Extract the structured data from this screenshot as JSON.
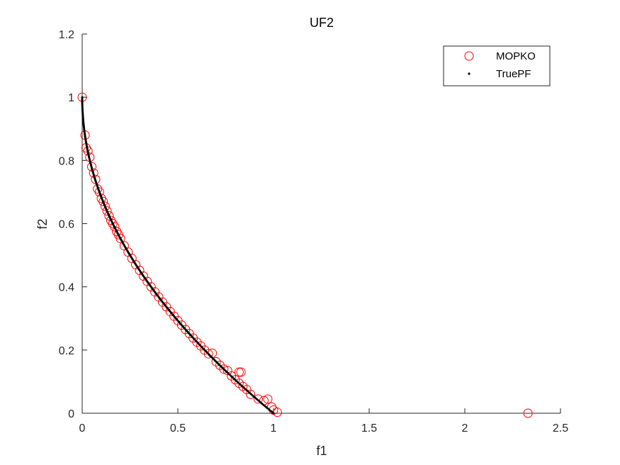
{
  "chart_data": {
    "type": "scatter",
    "title": "UF2",
    "xlabel": "f1",
    "ylabel": "f2",
    "xlim": [
      0,
      2.5
    ],
    "ylim": [
      0,
      1.2
    ],
    "xticks": [
      0,
      0.5,
      1,
      1.5,
      2,
      2.5
    ],
    "xtick_labels": [
      "0",
      "0.5",
      "1",
      "1.5",
      "2",
      "2.5"
    ],
    "yticks": [
      0,
      0.2,
      0.4,
      0.6,
      0.8,
      1,
      1.2
    ],
    "ytick_labels": [
      "0",
      "0.2",
      "0.4",
      "0.6",
      "0.8",
      "1",
      "1.2"
    ],
    "grid": false,
    "legend_position": "top-right",
    "colors": {
      "mopko": "#ff0000",
      "truepf": "#000000",
      "axis": "#262626"
    },
    "series": [
      {
        "name": "MOPKO",
        "marker": "open-circle",
        "points": [
          [
            0.0,
            1.0
          ],
          [
            0.015,
            0.88
          ],
          [
            0.02,
            0.84
          ],
          [
            0.03,
            0.83
          ],
          [
            0.04,
            0.81
          ],
          [
            0.05,
            0.78
          ],
          [
            0.06,
            0.76
          ],
          [
            0.07,
            0.74
          ],
          [
            0.08,
            0.71
          ],
          [
            0.09,
            0.7
          ],
          [
            0.1,
            0.68
          ],
          [
            0.11,
            0.67
          ],
          [
            0.12,
            0.655
          ],
          [
            0.13,
            0.64
          ],
          [
            0.14,
            0.625
          ],
          [
            0.15,
            0.61
          ],
          [
            0.16,
            0.6
          ],
          [
            0.17,
            0.59
          ],
          [
            0.18,
            0.575
          ],
          [
            0.19,
            0.565
          ],
          [
            0.2,
            0.553
          ],
          [
            0.22,
            0.53
          ],
          [
            0.24,
            0.51
          ],
          [
            0.26,
            0.49
          ],
          [
            0.28,
            0.47
          ],
          [
            0.3,
            0.452
          ],
          [
            0.32,
            0.434
          ],
          [
            0.34,
            0.417
          ],
          [
            0.36,
            0.4
          ],
          [
            0.38,
            0.384
          ],
          [
            0.4,
            0.368
          ],
          [
            0.42,
            0.352
          ],
          [
            0.44,
            0.337
          ],
          [
            0.46,
            0.322
          ],
          [
            0.48,
            0.307
          ],
          [
            0.5,
            0.293
          ],
          [
            0.52,
            0.279
          ],
          [
            0.54,
            0.265
          ],
          [
            0.56,
            0.252
          ],
          [
            0.58,
            0.238
          ],
          [
            0.6,
            0.225
          ],
          [
            0.62,
            0.213
          ],
          [
            0.64,
            0.2
          ],
          [
            0.66,
            0.188
          ],
          [
            0.68,
            0.19
          ],
          [
            0.7,
            0.163
          ],
          [
            0.72,
            0.152
          ],
          [
            0.74,
            0.14
          ],
          [
            0.76,
            0.135
          ],
          [
            0.78,
            0.118
          ],
          [
            0.8,
            0.106
          ],
          [
            0.82,
            0.13
          ],
          [
            0.83,
            0.13
          ],
          [
            0.82,
            0.095
          ],
          [
            0.84,
            0.085
          ],
          [
            0.86,
            0.075
          ],
          [
            0.88,
            0.06
          ],
          [
            0.92,
            0.045
          ],
          [
            0.95,
            0.04
          ],
          [
            0.97,
            0.045
          ],
          [
            0.99,
            0.02
          ],
          [
            1.0,
            0.01
          ],
          [
            1.02,
            0.003
          ],
          [
            2.33,
            0.0
          ]
        ]
      },
      {
        "name": "TruePF",
        "marker": "dot",
        "function": "f2 = 1 - sqrt(f1)",
        "x_range": [
          0,
          1
        ]
      }
    ]
  }
}
